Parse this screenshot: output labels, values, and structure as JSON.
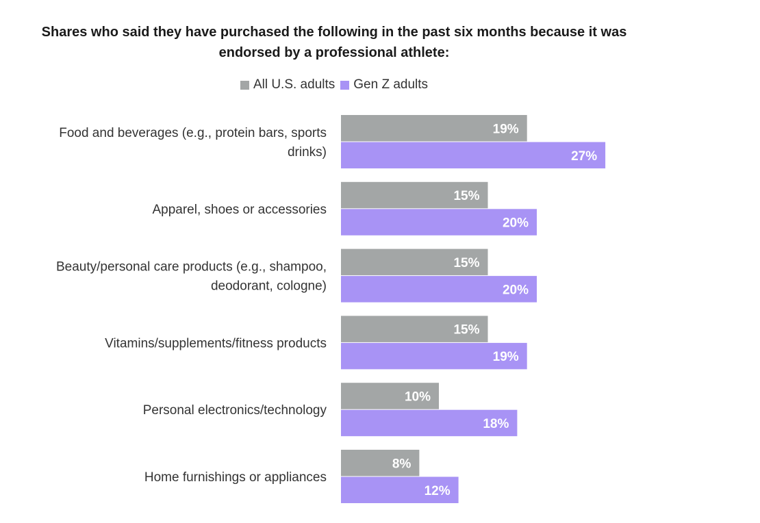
{
  "chart_data": {
    "type": "bar",
    "orientation": "horizontal",
    "title_line1": "Shares who said they have purchased the following in the past six months because it was",
    "title_line2": "endorsed by a professional athlete:",
    "legend_placement": "top-center",
    "grid": false,
    "xlim": [
      0,
      30
    ],
    "categories": [
      [
        "Food and beverages (e.g., protein bars, sports",
        "drinks)"
      ],
      [
        "Apparel, shoes or accessories"
      ],
      [
        "Beauty/personal care products (e.g., shampoo,",
        "deodorant, cologne)"
      ],
      [
        "Vitamins/supplements/fitness products"
      ],
      [
        "Personal electronics/technology"
      ],
      [
        "Home furnishings or appliances"
      ]
    ],
    "series": [
      {
        "name": "All U.S. adults",
        "color": "#a3a6a6",
        "values": [
          19,
          15,
          15,
          15,
          10,
          8
        ],
        "labels": [
          "19%",
          "15%",
          "15%",
          "15%",
          "10%",
          "8%"
        ]
      },
      {
        "name": "Gen Z adults",
        "color": "#a893f5",
        "values": [
          27,
          20,
          20,
          19,
          18,
          12
        ],
        "labels": [
          "27%",
          "20%",
          "20%",
          "19%",
          "18%",
          "12%"
        ]
      }
    ]
  }
}
